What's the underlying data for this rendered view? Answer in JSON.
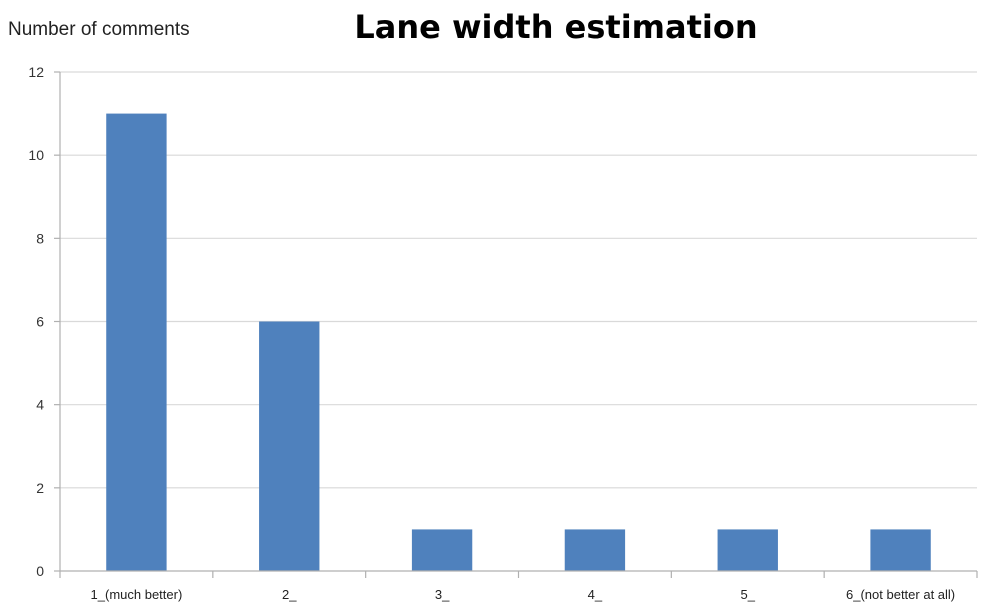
{
  "chart_data": {
    "type": "bar",
    "title": "Lane width estimation",
    "xlabel": "",
    "ylabel": "Number of comments",
    "categories": [
      "1_(much better)",
      "2_",
      "3_",
      "4_",
      "5_",
      "6_(not better at all)"
    ],
    "values": [
      11,
      6,
      1,
      1,
      1,
      1
    ],
    "ylim": [
      0,
      12
    ],
    "yticks": [
      0,
      2,
      4,
      6,
      8,
      10,
      12
    ],
    "grid": true,
    "legend": "none",
    "colors": {
      "bar": "#4F81BD",
      "grid": "#D9D9D9",
      "axis": "#B0B0B0"
    }
  }
}
